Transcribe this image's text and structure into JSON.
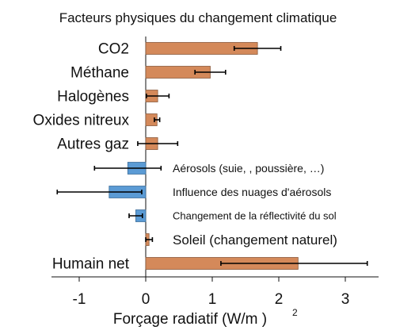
{
  "chart_data": {
    "type": "bar",
    "orientation": "horizontal",
    "title": "Facteurs physiques du changement climatique",
    "xlabel": "Forçage radiatif (W/m )",
    "xlabel_superscript": "2",
    "xlim": [
      -1.4,
      3.5
    ],
    "xticks": [
      -1,
      0,
      1,
      2,
      3
    ],
    "xtick_labels": [
      "-1",
      "0",
      "1",
      "2",
      "3"
    ],
    "grid": false,
    "colors": {
      "positive": "#d4895a",
      "negative": "#5b9bd5",
      "positive_edge": "#8a5a3c",
      "negative_edge": "#3e6e99"
    },
    "bars": [
      {
        "label": "CO2",
        "value": 1.68,
        "err_low": 1.33,
        "err_high": 2.03,
        "label_side": "left"
      },
      {
        "label": "Méthane",
        "value": 0.97,
        "err_low": 0.74,
        "err_high": 1.2,
        "label_side": "left"
      },
      {
        "label": "Halogènes",
        "value": 0.18,
        "err_low": 0.01,
        "err_high": 0.35,
        "label_side": "left"
      },
      {
        "label": "Oxides nitreux",
        "value": 0.17,
        "err_low": 0.13,
        "err_high": 0.21,
        "label_side": "left"
      },
      {
        "label": "Autres gaz",
        "value": 0.18,
        "err_low": -0.12,
        "err_high": 0.48,
        "label_side": "left"
      },
      {
        "label": "Aérosols (suie, , poussière, …)",
        "value": -0.27,
        "err_low": -0.77,
        "err_high": 0.23,
        "label_side": "right"
      },
      {
        "label": "Influence des nuages d'aérosols",
        "value": -0.55,
        "err_low": -1.33,
        "err_high": -0.06,
        "label_side": "right"
      },
      {
        "label": "Changement de la réflectivité du sol",
        "value": -0.15,
        "err_low": -0.25,
        "err_high": -0.05,
        "label_side": "right"
      },
      {
        "label": "Soleil (changement naturel)",
        "value": 0.05,
        "err_low": 0.0,
        "err_high": 0.1,
        "label_side": "right"
      },
      {
        "label": "Humain net",
        "value": 2.29,
        "err_low": 1.13,
        "err_high": 3.33,
        "label_side": "left"
      }
    ]
  }
}
